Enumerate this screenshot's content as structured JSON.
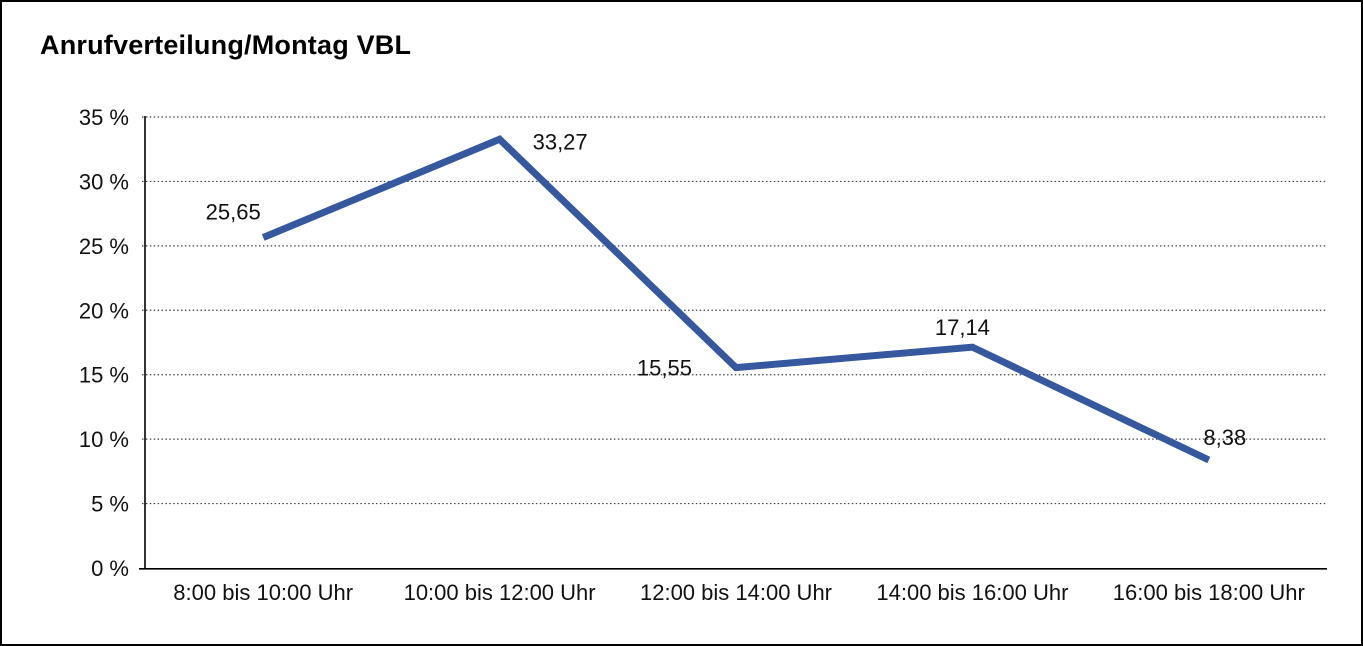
{
  "chart_data": {
    "type": "line",
    "title": "Anrufverteilung/Montag VBL",
    "categories": [
      "8:00 bis 10:00 Uhr",
      "10:00 bis 12:00 Uhr",
      "12:00 bis 14:00 Uhr",
      "14:00 bis 16:00 Uhr",
      "16:00 bis 18:00 Uhr"
    ],
    "values": [
      25.65,
      33.27,
      15.55,
      17.14,
      8.38
    ],
    "point_labels": [
      "25,65",
      "33,27",
      "15,55",
      "17,14",
      "8,38"
    ],
    "y_ticks": [
      0,
      5,
      10,
      15,
      20,
      25,
      30,
      35
    ],
    "y_tick_labels": [
      "0 %",
      "5 %",
      "10 %",
      "15 %",
      "20 %",
      "25 %",
      "30 %",
      "35 %"
    ],
    "ylim": [
      0,
      35
    ],
    "xlabel": "",
    "ylabel": "",
    "unit": "%",
    "grid": "horizontal-dotted",
    "legend": "none",
    "line_color": "#36589E",
    "axis_color": "#000000",
    "gridline_color": "#444444",
    "text_color": "#111111"
  }
}
